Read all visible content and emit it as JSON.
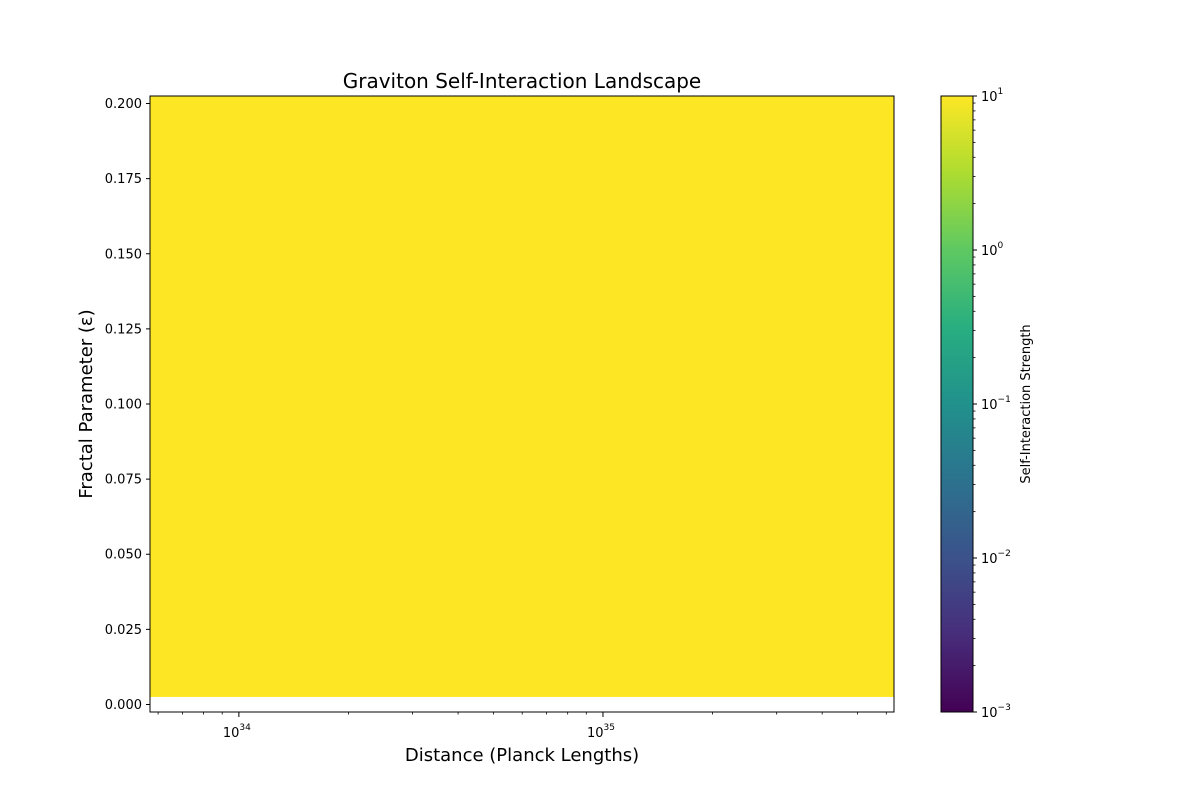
{
  "chart_data": {
    "type": "heatmap",
    "title": "Graviton Self-Interaction Landscape",
    "xlabel": "Distance (Planck Lengths)",
    "ylabel": "Fractal Parameter (ε)",
    "x_scale": "log",
    "xlim": [
      5.7e+33,
      6.3e+35
    ],
    "ylim": [
      -0.0025,
      0.2025
    ],
    "x_ticks": [
      {
        "base": "10",
        "exp": "34",
        "value": 1e+34
      },
      {
        "base": "10",
        "exp": "35",
        "value": 1e+35
      }
    ],
    "y_ticks": [
      {
        "label": "0.000",
        "value": 0.0
      },
      {
        "label": "0.025",
        "value": 0.025
      },
      {
        "label": "0.050",
        "value": 0.05
      },
      {
        "label": "0.075",
        "value": 0.075
      },
      {
        "label": "0.100",
        "value": 0.1
      },
      {
        "label": "0.125",
        "value": 0.125
      },
      {
        "label": "0.150",
        "value": 0.15
      },
      {
        "label": "0.175",
        "value": 0.175
      },
      {
        "label": "0.200",
        "value": 0.2
      }
    ],
    "heatmap_region": {
      "x_range": [
        5.7e+33,
        6.3e+35
      ],
      "y_range": [
        0.0025,
        0.2025
      ],
      "value": 10,
      "color": "#fde725"
    },
    "colorbar": {
      "label": "Self-Interaction Strength",
      "scale": "log",
      "range": [
        0.001,
        10
      ],
      "colormap": "viridis",
      "ticks": [
        {
          "base": "10",
          "exp": "1",
          "value": 10
        },
        {
          "base": "10",
          "exp": "0",
          "value": 1
        },
        {
          "base": "10",
          "exp": "−1",
          "value": 0.1
        },
        {
          "base": "10",
          "exp": "−2",
          "value": 0.01
        },
        {
          "base": "10",
          "exp": "−3",
          "value": 0.001
        }
      ]
    },
    "grid": false
  }
}
